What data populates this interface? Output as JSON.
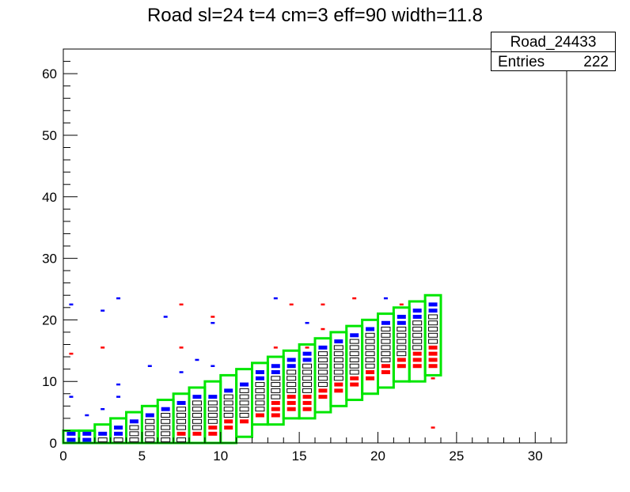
{
  "chart_data": {
    "type": "heatmap",
    "title": "Road sl=24 t=4 cm=3 eff=90 width=11.8",
    "xlabel": "",
    "ylabel": "",
    "xlim": [
      0,
      32
    ],
    "ylim": [
      0,
      64
    ],
    "x_ticks": [
      0,
      5,
      10,
      15,
      20,
      25,
      30
    ],
    "y_ticks": [
      0,
      10,
      20,
      30,
      40,
      50,
      60
    ],
    "stats": {
      "name": "Road_24433",
      "entries_label": "Entries",
      "entries": "222"
    },
    "colors": {
      "road": "#00e600",
      "blue": "#0000ff",
      "red": "#ff0000",
      "box": "#000000"
    },
    "road_boxes": [
      {
        "x": 0,
        "y_low": 0,
        "y_high": 2
      },
      {
        "x": 1,
        "y_low": 0,
        "y_high": 2
      },
      {
        "x": 2,
        "y_low": 0,
        "y_high": 3
      },
      {
        "x": 3,
        "y_low": 0,
        "y_high": 4
      },
      {
        "x": 4,
        "y_low": 0,
        "y_high": 5
      },
      {
        "x": 5,
        "y_low": 0,
        "y_high": 6
      },
      {
        "x": 6,
        "y_low": 0,
        "y_high": 7
      },
      {
        "x": 7,
        "y_low": 0,
        "y_high": 8
      },
      {
        "x": 8,
        "y_low": 0,
        "y_high": 9
      },
      {
        "x": 9,
        "y_low": 0,
        "y_high": 10
      },
      {
        "x": 10,
        "y_low": 0,
        "y_high": 11
      },
      {
        "x": 11,
        "y_low": 1,
        "y_high": 12
      },
      {
        "x": 12,
        "y_low": 3,
        "y_high": 13
      },
      {
        "x": 13,
        "y_low": 3,
        "y_high": 14
      },
      {
        "x": 14,
        "y_low": 4,
        "y_high": 15
      },
      {
        "x": 15,
        "y_low": 4,
        "y_high": 16
      },
      {
        "x": 16,
        "y_low": 5,
        "y_high": 17
      },
      {
        "x": 17,
        "y_low": 6,
        "y_high": 18
      },
      {
        "x": 18,
        "y_low": 7,
        "y_high": 19
      },
      {
        "x": 19,
        "y_low": 8,
        "y_high": 20
      },
      {
        "x": 20,
        "y_low": 9,
        "y_high": 21
      },
      {
        "x": 21,
        "y_low": 10,
        "y_high": 22
      },
      {
        "x": 22,
        "y_low": 10,
        "y_high": 23
      },
      {
        "x": 23,
        "y_low": 11,
        "y_high": 24
      }
    ],
    "cells": [
      {
        "x": 0,
        "y": 1,
        "c": "blue"
      },
      {
        "x": 0,
        "y": 0,
        "c": "blue"
      },
      {
        "x": 1,
        "y": 1,
        "c": "blue"
      },
      {
        "x": 1,
        "y": 0,
        "c": "blue"
      },
      {
        "x": 2,
        "y": 1,
        "c": "blue"
      },
      {
        "x": 2,
        "y": 0,
        "c": "box"
      },
      {
        "x": 3,
        "y": 2,
        "c": "blue"
      },
      {
        "x": 3,
        "y": 1,
        "c": "blue"
      },
      {
        "x": 3,
        "y": 0,
        "c": "box"
      },
      {
        "x": 4,
        "y": 3,
        "c": "blue"
      },
      {
        "x": 4,
        "y": 2,
        "c": "box"
      },
      {
        "x": 4,
        "y": 1,
        "c": "box"
      },
      {
        "x": 4,
        "y": 0,
        "c": "box"
      },
      {
        "x": 5,
        "y": 4,
        "c": "blue"
      },
      {
        "x": 5,
        "y": 3,
        "c": "box"
      },
      {
        "x": 5,
        "y": 2,
        "c": "box"
      },
      {
        "x": 5,
        "y": 1,
        "c": "box"
      },
      {
        "x": 5,
        "y": 0,
        "c": "box"
      },
      {
        "x": 6,
        "y": 5,
        "c": "blue"
      },
      {
        "x": 6,
        "y": 4,
        "c": "box"
      },
      {
        "x": 6,
        "y": 3,
        "c": "box"
      },
      {
        "x": 6,
        "y": 2,
        "c": "box"
      },
      {
        "x": 6,
        "y": 1,
        "c": "box"
      },
      {
        "x": 6,
        "y": 0,
        "c": "box"
      },
      {
        "x": 7,
        "y": 6,
        "c": "blue"
      },
      {
        "x": 7,
        "y": 5,
        "c": "box"
      },
      {
        "x": 7,
        "y": 4,
        "c": "box"
      },
      {
        "x": 7,
        "y": 3,
        "c": "box"
      },
      {
        "x": 7,
        "y": 2,
        "c": "box"
      },
      {
        "x": 7,
        "y": 1,
        "c": "red"
      },
      {
        "x": 7,
        "y": 0,
        "c": "box"
      },
      {
        "x": 8,
        "y": 7,
        "c": "blue"
      },
      {
        "x": 8,
        "y": 6,
        "c": "box"
      },
      {
        "x": 8,
        "y": 5,
        "c": "box"
      },
      {
        "x": 8,
        "y": 4,
        "c": "box"
      },
      {
        "x": 8,
        "y": 3,
        "c": "box"
      },
      {
        "x": 8,
        "y": 2,
        "c": "box"
      },
      {
        "x": 8,
        "y": 1,
        "c": "red"
      },
      {
        "x": 9,
        "y": 7,
        "c": "blue"
      },
      {
        "x": 9,
        "y": 6,
        "c": "box"
      },
      {
        "x": 9,
        "y": 5,
        "c": "box"
      },
      {
        "x": 9,
        "y": 4,
        "c": "box"
      },
      {
        "x": 9,
        "y": 3,
        "c": "box"
      },
      {
        "x": 9,
        "y": 2,
        "c": "red"
      },
      {
        "x": 9,
        "y": 1,
        "c": "red"
      },
      {
        "x": 10,
        "y": 8,
        "c": "blue"
      },
      {
        "x": 10,
        "y": 7,
        "c": "box"
      },
      {
        "x": 10,
        "y": 6,
        "c": "box"
      },
      {
        "x": 10,
        "y": 5,
        "c": "box"
      },
      {
        "x": 10,
        "y": 4,
        "c": "box"
      },
      {
        "x": 10,
        "y": 3,
        "c": "red"
      },
      {
        "x": 10,
        "y": 2,
        "c": "red"
      },
      {
        "x": 11,
        "y": 9,
        "c": "blue"
      },
      {
        "x": 11,
        "y": 8,
        "c": "box"
      },
      {
        "x": 11,
        "y": 7,
        "c": "box"
      },
      {
        "x": 11,
        "y": 6,
        "c": "box"
      },
      {
        "x": 11,
        "y": 5,
        "c": "box"
      },
      {
        "x": 11,
        "y": 4,
        "c": "box"
      },
      {
        "x": 11,
        "y": 3,
        "c": "red"
      },
      {
        "x": 12,
        "y": 11,
        "c": "blue"
      },
      {
        "x": 12,
        "y": 10,
        "c": "blue"
      },
      {
        "x": 12,
        "y": 9,
        "c": "box"
      },
      {
        "x": 12,
        "y": 8,
        "c": "box"
      },
      {
        "x": 12,
        "y": 7,
        "c": "box"
      },
      {
        "x": 12,
        "y": 6,
        "c": "box"
      },
      {
        "x": 12,
        "y": 5,
        "c": "box"
      },
      {
        "x": 12,
        "y": 4,
        "c": "red"
      },
      {
        "x": 13,
        "y": 12,
        "c": "blue"
      },
      {
        "x": 13,
        "y": 11,
        "c": "blue"
      },
      {
        "x": 13,
        "y": 10,
        "c": "box"
      },
      {
        "x": 13,
        "y": 9,
        "c": "box"
      },
      {
        "x": 13,
        "y": 8,
        "c": "box"
      },
      {
        "x": 13,
        "y": 7,
        "c": "box"
      },
      {
        "x": 13,
        "y": 6,
        "c": "red"
      },
      {
        "x": 13,
        "y": 5,
        "c": "red"
      },
      {
        "x": 13,
        "y": 4,
        "c": "red"
      },
      {
        "x": 14,
        "y": 13,
        "c": "blue"
      },
      {
        "x": 14,
        "y": 12,
        "c": "blue"
      },
      {
        "x": 14,
        "y": 11,
        "c": "box"
      },
      {
        "x": 14,
        "y": 10,
        "c": "box"
      },
      {
        "x": 14,
        "y": 9,
        "c": "box"
      },
      {
        "x": 14,
        "y": 8,
        "c": "box"
      },
      {
        "x": 14,
        "y": 7,
        "c": "red"
      },
      {
        "x": 14,
        "y": 6,
        "c": "red"
      },
      {
        "x": 14,
        "y": 5,
        "c": "red"
      },
      {
        "x": 15,
        "y": 14,
        "c": "blue"
      },
      {
        "x": 15,
        "y": 13,
        "c": "blue"
      },
      {
        "x": 15,
        "y": 12,
        "c": "box"
      },
      {
        "x": 15,
        "y": 11,
        "c": "box"
      },
      {
        "x": 15,
        "y": 10,
        "c": "box"
      },
      {
        "x": 15,
        "y": 9,
        "c": "box"
      },
      {
        "x": 15,
        "y": 8,
        "c": "box"
      },
      {
        "x": 15,
        "y": 7,
        "c": "red"
      },
      {
        "x": 15,
        "y": 6,
        "c": "red"
      },
      {
        "x": 15,
        "y": 5,
        "c": "red"
      },
      {
        "x": 16,
        "y": 15,
        "c": "blue"
      },
      {
        "x": 16,
        "y": 14,
        "c": "box"
      },
      {
        "x": 16,
        "y": 13,
        "c": "box"
      },
      {
        "x": 16,
        "y": 12,
        "c": "box"
      },
      {
        "x": 16,
        "y": 11,
        "c": "box"
      },
      {
        "x": 16,
        "y": 10,
        "c": "box"
      },
      {
        "x": 16,
        "y": 9,
        "c": "box"
      },
      {
        "x": 16,
        "y": 8,
        "c": "red"
      },
      {
        "x": 16,
        "y": 7,
        "c": "red"
      },
      {
        "x": 17,
        "y": 16,
        "c": "blue"
      },
      {
        "x": 17,
        "y": 15,
        "c": "box"
      },
      {
        "x": 17,
        "y": 14,
        "c": "box"
      },
      {
        "x": 17,
        "y": 13,
        "c": "box"
      },
      {
        "x": 17,
        "y": 12,
        "c": "box"
      },
      {
        "x": 17,
        "y": 11,
        "c": "box"
      },
      {
        "x": 17,
        "y": 10,
        "c": "box"
      },
      {
        "x": 17,
        "y": 9,
        "c": "red"
      },
      {
        "x": 17,
        "y": 8,
        "c": "red"
      },
      {
        "x": 18,
        "y": 17,
        "c": "blue"
      },
      {
        "x": 18,
        "y": 16,
        "c": "box"
      },
      {
        "x": 18,
        "y": 15,
        "c": "box"
      },
      {
        "x": 18,
        "y": 14,
        "c": "box"
      },
      {
        "x": 18,
        "y": 13,
        "c": "box"
      },
      {
        "x": 18,
        "y": 12,
        "c": "box"
      },
      {
        "x": 18,
        "y": 11,
        "c": "box"
      },
      {
        "x": 18,
        "y": 10,
        "c": "red"
      },
      {
        "x": 18,
        "y": 9,
        "c": "red"
      },
      {
        "x": 19,
        "y": 18,
        "c": "blue"
      },
      {
        "x": 19,
        "y": 17,
        "c": "box"
      },
      {
        "x": 19,
        "y": 16,
        "c": "box"
      },
      {
        "x": 19,
        "y": 15,
        "c": "box"
      },
      {
        "x": 19,
        "y": 14,
        "c": "box"
      },
      {
        "x": 19,
        "y": 13,
        "c": "box"
      },
      {
        "x": 19,
        "y": 12,
        "c": "box"
      },
      {
        "x": 19,
        "y": 11,
        "c": "red"
      },
      {
        "x": 19,
        "y": 10,
        "c": "red"
      },
      {
        "x": 20,
        "y": 19,
        "c": "blue"
      },
      {
        "x": 20,
        "y": 18,
        "c": "box"
      },
      {
        "x": 20,
        "y": 17,
        "c": "box"
      },
      {
        "x": 20,
        "y": 16,
        "c": "box"
      },
      {
        "x": 20,
        "y": 15,
        "c": "box"
      },
      {
        "x": 20,
        "y": 14,
        "c": "box"
      },
      {
        "x": 20,
        "y": 13,
        "c": "box"
      },
      {
        "x": 20,
        "y": 12,
        "c": "red"
      },
      {
        "x": 20,
        "y": 11,
        "c": "red"
      },
      {
        "x": 21,
        "y": 20,
        "c": "blue"
      },
      {
        "x": 21,
        "y": 19,
        "c": "blue"
      },
      {
        "x": 21,
        "y": 18,
        "c": "box"
      },
      {
        "x": 21,
        "y": 17,
        "c": "box"
      },
      {
        "x": 21,
        "y": 16,
        "c": "box"
      },
      {
        "x": 21,
        "y": 15,
        "c": "box"
      },
      {
        "x": 21,
        "y": 14,
        "c": "box"
      },
      {
        "x": 21,
        "y": 13,
        "c": "red"
      },
      {
        "x": 21,
        "y": 12,
        "c": "red"
      },
      {
        "x": 22,
        "y": 21,
        "c": "blue"
      },
      {
        "x": 22,
        "y": 20,
        "c": "blue"
      },
      {
        "x": 22,
        "y": 19,
        "c": "box"
      },
      {
        "x": 22,
        "y": 18,
        "c": "box"
      },
      {
        "x": 22,
        "y": 17,
        "c": "box"
      },
      {
        "x": 22,
        "y": 16,
        "c": "box"
      },
      {
        "x": 22,
        "y": 15,
        "c": "box"
      },
      {
        "x": 22,
        "y": 14,
        "c": "red"
      },
      {
        "x": 22,
        "y": 13,
        "c": "red"
      },
      {
        "x": 22,
        "y": 12,
        "c": "red"
      },
      {
        "x": 23,
        "y": 22,
        "c": "blue"
      },
      {
        "x": 23,
        "y": 21,
        "c": "blue"
      },
      {
        "x": 23,
        "y": 20,
        "c": "box"
      },
      {
        "x": 23,
        "y": 19,
        "c": "box"
      },
      {
        "x": 23,
        "y": 18,
        "c": "box"
      },
      {
        "x": 23,
        "y": 17,
        "c": "box"
      },
      {
        "x": 23,
        "y": 16,
        "c": "box"
      },
      {
        "x": 23,
        "y": 15,
        "c": "red"
      },
      {
        "x": 23,
        "y": 14,
        "c": "red"
      },
      {
        "x": 23,
        "y": 13,
        "c": "red"
      },
      {
        "x": 23,
        "y": 12,
        "c": "red"
      }
    ],
    "outliers": [
      {
        "x": 0,
        "y": 22,
        "c": "blue"
      },
      {
        "x": 0,
        "y": 14,
        "c": "red"
      },
      {
        "x": 0,
        "y": 7,
        "c": "blue"
      },
      {
        "x": 1,
        "y": 4,
        "c": "blue"
      },
      {
        "x": 2,
        "y": 21,
        "c": "blue"
      },
      {
        "x": 2,
        "y": 15,
        "c": "red"
      },
      {
        "x": 2,
        "y": 5,
        "c": "blue"
      },
      {
        "x": 3,
        "y": 23,
        "c": "blue"
      },
      {
        "x": 3,
        "y": 9,
        "c": "blue"
      },
      {
        "x": 3,
        "y": 7,
        "c": "blue"
      },
      {
        "x": 5,
        "y": 12,
        "c": "blue"
      },
      {
        "x": 6,
        "y": 20,
        "c": "blue"
      },
      {
        "x": 7,
        "y": 22,
        "c": "red"
      },
      {
        "x": 7,
        "y": 15,
        "c": "red"
      },
      {
        "x": 7,
        "y": 11,
        "c": "blue"
      },
      {
        "x": 8,
        "y": 13,
        "c": "blue"
      },
      {
        "x": 9,
        "y": 20,
        "c": "red"
      },
      {
        "x": 9,
        "y": 19,
        "c": "blue"
      },
      {
        "x": 9,
        "y": 12,
        "c": "blue"
      },
      {
        "x": 13,
        "y": 23,
        "c": "blue"
      },
      {
        "x": 13,
        "y": 15,
        "c": "red"
      },
      {
        "x": 14,
        "y": 22,
        "c": "red"
      },
      {
        "x": 15,
        "y": 19,
        "c": "blue"
      },
      {
        "x": 15,
        "y": 15,
        "c": "red"
      },
      {
        "x": 16,
        "y": 22,
        "c": "red"
      },
      {
        "x": 16,
        "y": 18,
        "c": "red"
      },
      {
        "x": 18,
        "y": 23,
        "c": "red"
      },
      {
        "x": 20,
        "y": 23,
        "c": "blue"
      },
      {
        "x": 21,
        "y": 22,
        "c": "red"
      },
      {
        "x": 23,
        "y": 10,
        "c": "red"
      },
      {
        "x": 23,
        "y": 2,
        "c": "red"
      }
    ]
  }
}
